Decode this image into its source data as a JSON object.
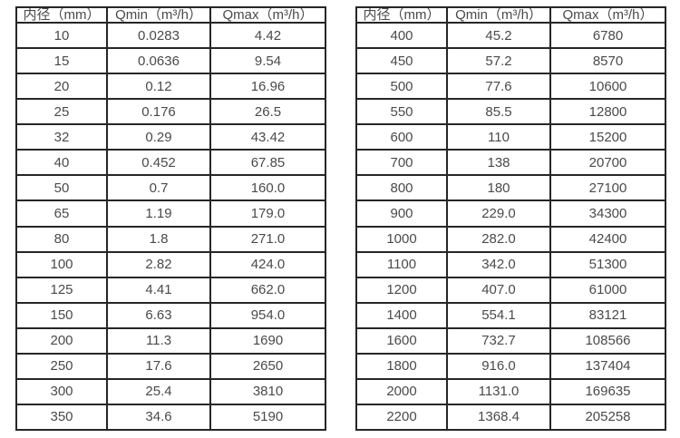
{
  "colors": {
    "text": "#4a4a4a",
    "border": "#262626",
    "background": "#ffffff"
  },
  "tables": [
    {
      "name": "flow-spec-table-small-diameters",
      "headers": [
        "内径（mm）",
        "Qmin（m³/h）",
        "Qmax（m³/h）"
      ],
      "rows": [
        [
          "10",
          "0.0283",
          "4.42"
        ],
        [
          "15",
          "0.0636",
          "9.54"
        ],
        [
          "20",
          "0.12",
          "16.96"
        ],
        [
          "25",
          "0.176",
          "26.5"
        ],
        [
          "32",
          "0.29",
          "43.42"
        ],
        [
          "40",
          "0.452",
          "67.85"
        ],
        [
          "50",
          "0.7",
          "160.0"
        ],
        [
          "65",
          "1.19",
          "179.0"
        ],
        [
          "80",
          "1.8",
          "271.0"
        ],
        [
          "100",
          "2.82",
          "424.0"
        ],
        [
          "125",
          "4.41",
          "662.0"
        ],
        [
          "150",
          "6.63",
          "954.0"
        ],
        [
          "200",
          "11.3",
          "1690"
        ],
        [
          "250",
          "17.6",
          "2650"
        ],
        [
          "300",
          "25.4",
          "3810"
        ],
        [
          "350",
          "34.6",
          "5190"
        ]
      ]
    },
    {
      "name": "flow-spec-table-large-diameters",
      "headers": [
        "内径（mm）",
        "Qmin（m³/h）",
        "Qmax（m³/h）"
      ],
      "rows": [
        [
          "400",
          "45.2",
          "6780"
        ],
        [
          "450",
          "57.2",
          "8570"
        ],
        [
          "500",
          "77.6",
          "10600"
        ],
        [
          "550",
          "85.5",
          "12800"
        ],
        [
          "600",
          "110",
          "15200"
        ],
        [
          "700",
          "138",
          "20700"
        ],
        [
          "800",
          "180",
          "27100"
        ],
        [
          "900",
          "229.0",
          "34300"
        ],
        [
          "1000",
          "282.0",
          "42400"
        ],
        [
          "1100",
          "342.0",
          "51300"
        ],
        [
          "1200",
          "407.0",
          "61000"
        ],
        [
          "1400",
          "554.1",
          "83121"
        ],
        [
          "1600",
          "732.7",
          "108566"
        ],
        [
          "1800",
          "916.0",
          "137404"
        ],
        [
          "2000",
          "1131.0",
          "169635"
        ],
        [
          "2200",
          "1368.4",
          "205258"
        ]
      ]
    }
  ]
}
